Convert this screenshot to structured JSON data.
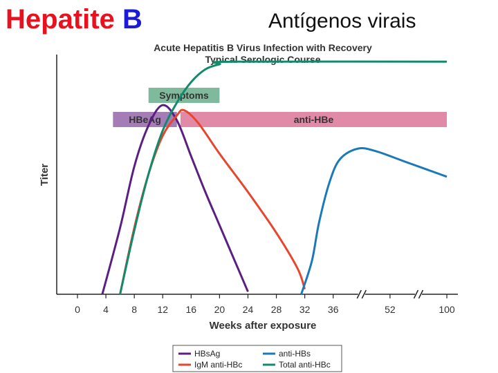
{
  "slide": {
    "title_red": "Hepatite",
    "title_blue": "B",
    "subtitle": "Antígenos virais"
  },
  "colors": {
    "title_red": "#e8121e",
    "title_blue": "#1b1bd6",
    "symptoms": "#7fba9c",
    "hbeag_bar": "#a47db7",
    "anti_hbe_bar": "#e08aa8",
    "HBsAg": "#5b1f82",
    "IgM anti-HBc": "#e8452c",
    "anti-HBs": "#1a7ab8",
    "Total anti-HBc": "#128a6b"
  },
  "chart_data": {
    "type": "line",
    "title": "Acute Hepatitis B Virus Infection with Recovery",
    "subtitle": "Typical Serologic Course",
    "xlabel": "Weeks after exposure",
    "ylabel": "Titer",
    "x_ticks": [
      "0",
      "4",
      "8",
      "12",
      "16",
      "20",
      "24",
      "28",
      "32",
      "36",
      "52",
      "100"
    ],
    "x_positions": [
      0,
      4,
      8,
      12,
      16,
      20,
      24,
      28,
      32,
      36,
      44,
      52
    ],
    "axis_break_positions": [
      40,
      48
    ],
    "xlim": [
      -3,
      53
    ],
    "ylim": [
      0,
      100
    ],
    "grid": false,
    "legend_position": "bottom",
    "bars": [
      {
        "label": "Symptoms",
        "start": 10,
        "end": 20,
        "row": "upper",
        "color": "#7fba9c"
      },
      {
        "label": "HBeAg",
        "start": 5,
        "end": 14,
        "row": "lower",
        "color": "#a47db7"
      },
      {
        "label": "anti-HBe",
        "start": 14.5,
        "end": 52,
        "row": "lower",
        "color": "#e08aa8"
      }
    ],
    "series": [
      {
        "name": "HBsAg",
        "color": "#5b1f82",
        "points": [
          [
            3.5,
            0
          ],
          [
            6,
            26
          ],
          [
            8,
            50
          ],
          [
            10,
            66
          ],
          [
            12,
            74
          ],
          [
            14,
            68
          ],
          [
            16,
            54
          ],
          [
            18,
            40
          ],
          [
            20,
            27
          ],
          [
            22,
            14
          ],
          [
            24,
            1
          ]
        ]
      },
      {
        "name": "IgM anti-HBc",
        "color": "#e8452c",
        "points": [
          [
            6,
            0
          ],
          [
            8,
            26
          ],
          [
            10,
            47
          ],
          [
            12,
            62
          ],
          [
            14,
            70
          ],
          [
            15,
            72
          ],
          [
            17,
            67
          ],
          [
            20,
            55
          ],
          [
            24,
            40
          ],
          [
            28,
            24
          ],
          [
            31,
            10
          ],
          [
            32,
            2
          ]
        ]
      },
      {
        "name": "anti-HBs",
        "color": "#1a7ab8",
        "points": [
          [
            31.5,
            0
          ],
          [
            33,
            13
          ],
          [
            34,
            28
          ],
          [
            35.5,
            44
          ],
          [
            37,
            53
          ],
          [
            39.5,
            57
          ],
          [
            42,
            56
          ],
          [
            46,
            52
          ],
          [
            52,
            46
          ]
        ]
      },
      {
        "name": "Total anti-HBc",
        "color": "#128a6b",
        "points": [
          [
            6,
            0
          ],
          [
            8,
            25
          ],
          [
            10,
            47
          ],
          [
            12,
            64
          ],
          [
            14,
            75
          ],
          [
            16,
            83
          ],
          [
            18,
            88
          ],
          [
            20,
            90
          ],
          [
            22,
            91
          ],
          [
            52,
            91
          ]
        ]
      }
    ],
    "legend": [
      {
        "name": "HBsAg",
        "color": "#5b1f82"
      },
      {
        "name": "anti-HBs",
        "color": "#1a7ab8"
      },
      {
        "name": "IgM anti-HBc",
        "color": "#e8452c"
      },
      {
        "name": "Total anti-HBc",
        "color": "#128a6b"
      }
    ]
  }
}
